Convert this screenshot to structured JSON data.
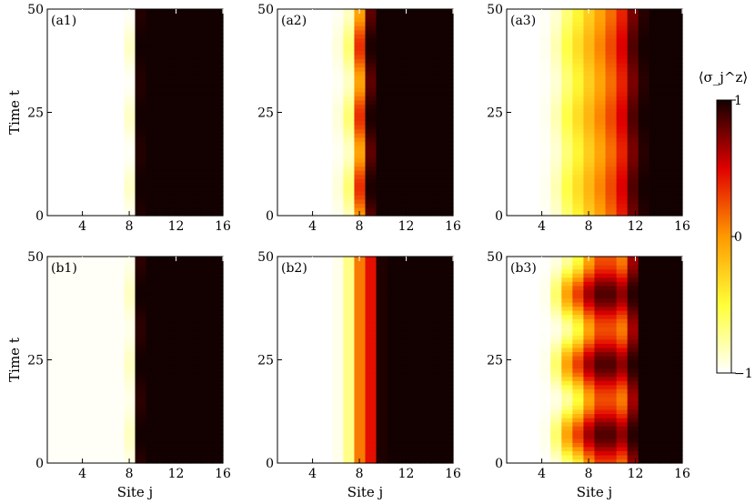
{
  "chart_data": {
    "type": "heatmap",
    "colormap": "hot (white → yellow → orange → red → black)",
    "colorbar": {
      "title": "⟨σ_j^z⟩",
      "range": [
        -1,
        1
      ],
      "ticks": [
        {
          "value": 1,
          "label": "1"
        },
        {
          "value": 0,
          "label": "0"
        },
        {
          "value": -1,
          "label": "−1"
        }
      ]
    },
    "x_axis": {
      "label": "Site j",
      "range": [
        1,
        16
      ],
      "ticks": [
        "4",
        "8",
        "12",
        "16"
      ],
      "tick_values": [
        4,
        8,
        12,
        16
      ]
    },
    "y_axis": {
      "label": "Time t",
      "range": [
        0,
        50
      ],
      "ticks": [
        "0",
        "25",
        "50"
      ],
      "tick_values": [
        0,
        25,
        50
      ]
    },
    "panels": [
      {
        "label": "(a1)",
        "profile": [
          -1,
          -1,
          -1,
          -1,
          -1,
          -1,
          -1,
          -0.92,
          0.98,
          1,
          1,
          1,
          1,
          1,
          1,
          1
        ],
        "osc_amp": [
          0,
          0,
          0,
          0,
          0,
          0,
          0,
          0.06,
          0.02,
          0,
          0,
          0,
          0,
          0,
          0,
          0
        ],
        "osc_period": 17
      },
      {
        "label": "(a2)",
        "profile": [
          -1,
          -1,
          -1,
          -1,
          -1,
          -0.94,
          -0.75,
          0.15,
          0.9,
          1,
          1,
          1,
          1,
          1,
          1,
          1
        ],
        "osc_amp": [
          0,
          0,
          0,
          0,
          0,
          0.03,
          0.1,
          0.2,
          0.08,
          0,
          0,
          0,
          0,
          0,
          0,
          0
        ],
        "osc_period": 17
      },
      {
        "label": "(a3)",
        "profile": [
          -1,
          -1,
          -1,
          -0.97,
          -0.85,
          -0.6,
          -0.4,
          -0.2,
          0,
          0.2,
          0.45,
          0.8,
          0.97,
          1,
          1,
          1
        ],
        "osc_amp": [
          0,
          0,
          0,
          0.01,
          0.04,
          0.06,
          0.06,
          0.06,
          0.06,
          0.06,
          0.06,
          0.05,
          0.02,
          0,
          0,
          0
        ],
        "osc_period": 17
      },
      {
        "label": "(b1)",
        "profile": [
          -0.98,
          -0.98,
          -0.98,
          -0.98,
          -0.98,
          -0.98,
          -0.98,
          -0.9,
          0.97,
          1,
          1,
          1,
          1,
          1,
          1,
          1
        ],
        "osc_amp": [
          0,
          0,
          0,
          0,
          0,
          0,
          0,
          0.05,
          0.03,
          0,
          0,
          0,
          0,
          0,
          0,
          0
        ],
        "osc_period": 17
      },
      {
        "label": "(b2)",
        "profile": [
          -1,
          -1,
          -1,
          -1,
          -1,
          -0.95,
          -0.7,
          0.1,
          0.45,
          0.97,
          1,
          1,
          1,
          1,
          1,
          1
        ],
        "osc_amp": [
          0,
          0,
          0,
          0,
          0,
          0,
          0,
          0,
          0,
          0,
          0,
          0,
          0,
          0,
          0,
          0
        ],
        "osc_period": 17
      },
      {
        "label": "(b3)",
        "profile": [
          -1,
          -1,
          -1,
          -0.97,
          -0.78,
          -0.4,
          -0.1,
          0.3,
          0.55,
          0.55,
          0.4,
          0.8,
          1,
          1,
          1,
          1
        ],
        "osc_amp": [
          0,
          0,
          0,
          0.02,
          0.15,
          0.35,
          0.4,
          0.35,
          0.3,
          0.3,
          0.3,
          0.15,
          0,
          0,
          0,
          0
        ],
        "osc_period": 17
      }
    ]
  }
}
